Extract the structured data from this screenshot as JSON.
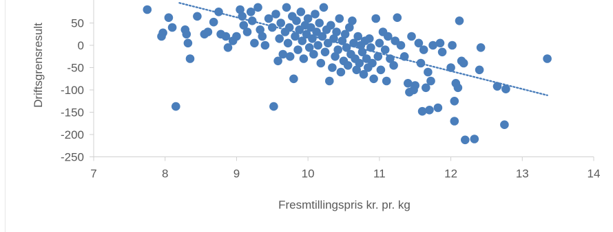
{
  "chart_data": {
    "type": "scatter",
    "xlabel": "Fresmtillingspris kr. pr. kg",
    "ylabel": "Driftsgrensresult",
    "xlim": [
      7,
      14
    ],
    "ylim": [
      -250,
      90
    ],
    "x_ticks": [
      7,
      8,
      9,
      10,
      11,
      12,
      13,
      14
    ],
    "y_ticks": [
      50,
      0,
      -50,
      -100,
      -150,
      -200,
      -250
    ],
    "grid": false,
    "legend": "none",
    "marker_color": "#4a7ebb",
    "trendline": {
      "style": "dotted",
      "color": "#4a7ebb",
      "x": [
        8.2,
        13.35
      ],
      "y": [
        95,
        -112
      ]
    },
    "points": [
      [
        7.75,
        80
      ],
      [
        7.95,
        20
      ],
      [
        7.97,
        28
      ],
      [
        8.05,
        62
      ],
      [
        8.1,
        40
      ],
      [
        8.15,
        -137
      ],
      [
        8.28,
        35
      ],
      [
        8.3,
        25
      ],
      [
        8.32,
        5
      ],
      [
        8.35,
        -30
      ],
      [
        8.45,
        65
      ],
      [
        8.55,
        25
      ],
      [
        8.6,
        30
      ],
      [
        8.68,
        52
      ],
      [
        8.75,
        75
      ],
      [
        8.78,
        25
      ],
      [
        8.85,
        20
      ],
      [
        8.88,
        -5
      ],
      [
        8.95,
        10
      ],
      [
        9.0,
        20
      ],
      [
        9.05,
        80
      ],
      [
        9.08,
        65
      ],
      [
        9.1,
        45
      ],
      [
        9.15,
        30
      ],
      [
        9.2,
        75
      ],
      [
        9.22,
        55
      ],
      [
        9.25,
        5
      ],
      [
        9.3,
        85
      ],
      [
        9.33,
        35
      ],
      [
        9.36,
        20
      ],
      [
        9.4,
        0
      ],
      [
        9.45,
        60
      ],
      [
        9.5,
        40
      ],
      [
        9.52,
        -137
      ],
      [
        9.55,
        70
      ],
      [
        9.58,
        -35
      ],
      [
        9.6,
        15
      ],
      [
        9.62,
        50
      ],
      [
        9.65,
        -20
      ],
      [
        9.68,
        30
      ],
      [
        9.7,
        85
      ],
      [
        9.72,
        5
      ],
      [
        9.74,
        40
      ],
      [
        9.75,
        -25
      ],
      [
        9.78,
        65
      ],
      [
        9.8,
        -75
      ],
      [
        9.82,
        20
      ],
      [
        9.84,
        55
      ],
      [
        9.86,
        -10
      ],
      [
        9.88,
        35
      ],
      [
        9.9,
        75
      ],
      [
        9.92,
        10
      ],
      [
        9.94,
        -30
      ],
      [
        9.96,
        45
      ],
      [
        9.98,
        25
      ],
      [
        10.0,
        60
      ],
      [
        10.02,
        -5
      ],
      [
        10.04,
        40
      ],
      [
        10.06,
        15
      ],
      [
        10.08,
        -20
      ],
      [
        10.1,
        70
      ],
      [
        10.12,
        30
      ],
      [
        10.14,
        0
      ],
      [
        10.16,
        50
      ],
      [
        10.18,
        -40
      ],
      [
        10.2,
        20
      ],
      [
        10.22,
        85
      ],
      [
        10.24,
        -15
      ],
      [
        10.26,
        35
      ],
      [
        10.28,
        5
      ],
      [
        10.3,
        -80
      ],
      [
        10.32,
        45
      ],
      [
        10.34,
        -50
      ],
      [
        10.36,
        15
      ],
      [
        10.38,
        -25
      ],
      [
        10.4,
        30
      ],
      [
        10.42,
        -10
      ],
      [
        10.44,
        60
      ],
      [
        10.46,
        -60
      ],
      [
        10.48,
        10
      ],
      [
        10.5,
        -35
      ],
      [
        10.52,
        25
      ],
      [
        10.54,
        -5
      ],
      [
        10.56,
        -45
      ],
      [
        10.58,
        40
      ],
      [
        10.6,
        -20
      ],
      [
        10.62,
        55
      ],
      [
        10.64,
        5
      ],
      [
        10.66,
        -30
      ],
      [
        10.68,
        -55
      ],
      [
        10.7,
        20
      ],
      [
        10.72,
        -40
      ],
      [
        10.74,
        0
      ],
      [
        10.76,
        -15
      ],
      [
        10.78,
        -65
      ],
      [
        10.8,
        10
      ],
      [
        10.82,
        -30
      ],
      [
        10.84,
        -50
      ],
      [
        10.86,
        15
      ],
      [
        10.88,
        -5
      ],
      [
        10.9,
        -40
      ],
      [
        10.92,
        -75
      ],
      [
        10.95,
        60
      ],
      [
        10.98,
        -25
      ],
      [
        11.0,
        5
      ],
      [
        11.02,
        -55
      ],
      [
        11.05,
        30
      ],
      [
        11.08,
        -10
      ],
      [
        11.1,
        -80
      ],
      [
        11.12,
        20
      ],
      [
        11.15,
        -30
      ],
      [
        11.2,
        -45
      ],
      [
        11.22,
        10
      ],
      [
        11.25,
        62
      ],
      [
        11.3,
        0
      ],
      [
        11.35,
        -25
      ],
      [
        11.4,
        -85
      ],
      [
        11.42,
        -105
      ],
      [
        11.45,
        20
      ],
      [
        11.48,
        -100
      ],
      [
        11.5,
        -90
      ],
      [
        11.55,
        5
      ],
      [
        11.58,
        -40
      ],
      [
        11.6,
        -148
      ],
      [
        11.62,
        -10
      ],
      [
        11.65,
        -95
      ],
      [
        11.68,
        -60
      ],
      [
        11.7,
        -145
      ],
      [
        11.72,
        -80
      ],
      [
        11.75,
        0
      ],
      [
        11.82,
        -140
      ],
      [
        11.85,
        5
      ],
      [
        11.88,
        -15
      ],
      [
        12.0,
        -50
      ],
      [
        12.02,
        0
      ],
      [
        12.05,
        -125
      ],
      [
        12.05,
        -170
      ],
      [
        12.07,
        -85
      ],
      [
        12.1,
        -95
      ],
      [
        12.12,
        55
      ],
      [
        12.15,
        -35
      ],
      [
        12.18,
        -40
      ],
      [
        12.2,
        -212
      ],
      [
        12.33,
        -210
      ],
      [
        12.4,
        -55
      ],
      [
        12.42,
        -5
      ],
      [
        12.65,
        -92
      ],
      [
        12.75,
        -178
      ],
      [
        12.77,
        -98
      ],
      [
        13.35,
        -30
      ]
    ]
  }
}
